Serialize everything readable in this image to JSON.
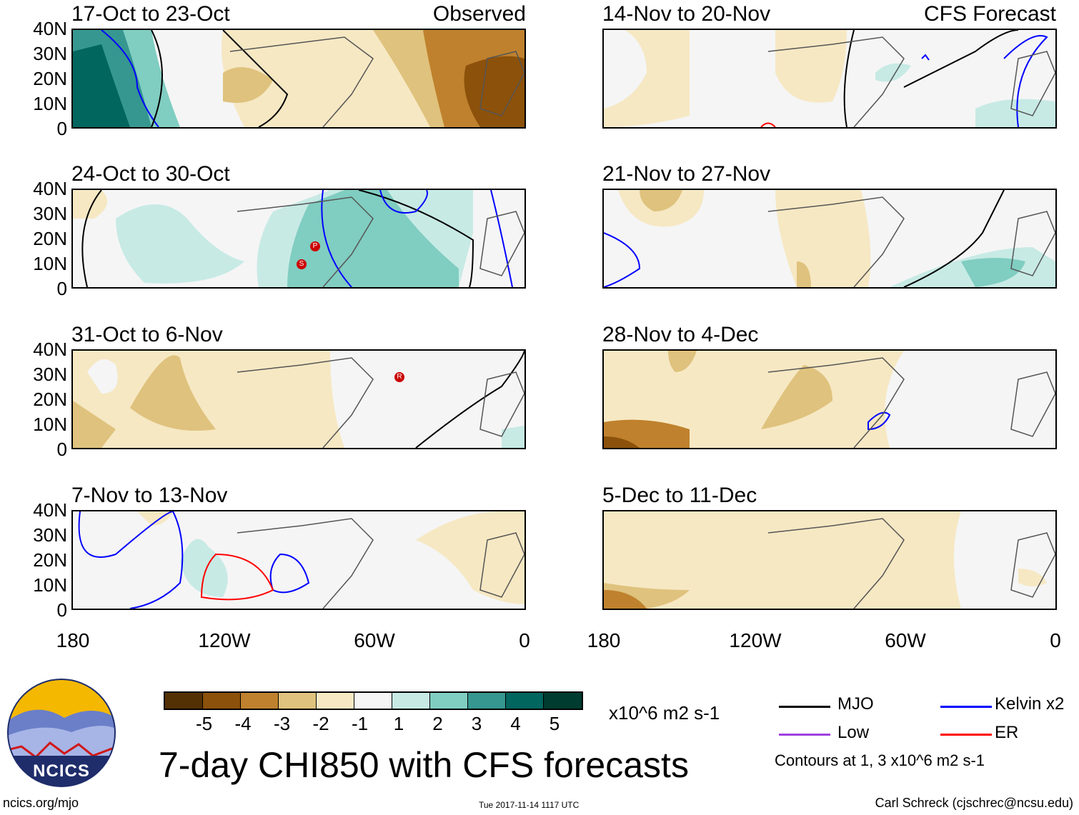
{
  "figure": {
    "main_title": "7-day CHI850 with CFS forecasts",
    "footer_left": "ncics.org/mjo",
    "footer_center": "Tue 2017-11-14 1117 UTC",
    "footer_right": "Carl Schreck (cjschrec@ncsu.edu)",
    "logo_text": "NCICS"
  },
  "panel_labels": {
    "observed": "Observed",
    "forecast": "CFS Forecast"
  },
  "panels": [
    {
      "title": "17-Oct to 23-Oct",
      "kind": "observed"
    },
    {
      "title": "24-Oct to 30-Oct",
      "kind": "observed"
    },
    {
      "title": "31-Oct to 6-Nov",
      "kind": "observed"
    },
    {
      "title": "7-Nov to 13-Nov",
      "kind": "observed"
    },
    {
      "title": "14-Nov to 20-Nov",
      "kind": "forecast"
    },
    {
      "title": "21-Nov to 27-Nov",
      "kind": "forecast"
    },
    {
      "title": "28-Nov to 4-Dec",
      "kind": "forecast"
    },
    {
      "title": "5-Dec to 11-Dec",
      "kind": "forecast"
    }
  ],
  "axes": {
    "lat_labels": [
      "40N",
      "30N",
      "20N",
      "10N",
      "0"
    ],
    "lon_labels": [
      "180",
      "120W",
      "60W",
      "0"
    ]
  },
  "colorbar": {
    "units": "x10^6 m2 s-1",
    "tick_labels": [
      "-5",
      "-4",
      "-3",
      "-2",
      "-1",
      "1",
      "2",
      "3",
      "4",
      "5"
    ],
    "colors": [
      "#543005",
      "#8c510a",
      "#bf812d",
      "#dfc27d",
      "#f6e8c3",
      "#f5f5f5",
      "#c7eae5",
      "#80cdc1",
      "#35978f",
      "#01665e",
      "#003c30"
    ]
  },
  "legend": {
    "items": [
      {
        "label": "MJO",
        "color": "#000000"
      },
      {
        "label": "Kelvin x2",
        "color": "#0000ff"
      },
      {
        "label": "Low",
        "color": "#a040e0"
      },
      {
        "label": "ER",
        "color": "#ff0000"
      }
    ],
    "note": "Contours at 1, 3 x10^6 m2 s-1"
  },
  "storms": [
    {
      "label": "S"
    },
    {
      "label": "P"
    },
    {
      "label": "R"
    }
  ]
}
